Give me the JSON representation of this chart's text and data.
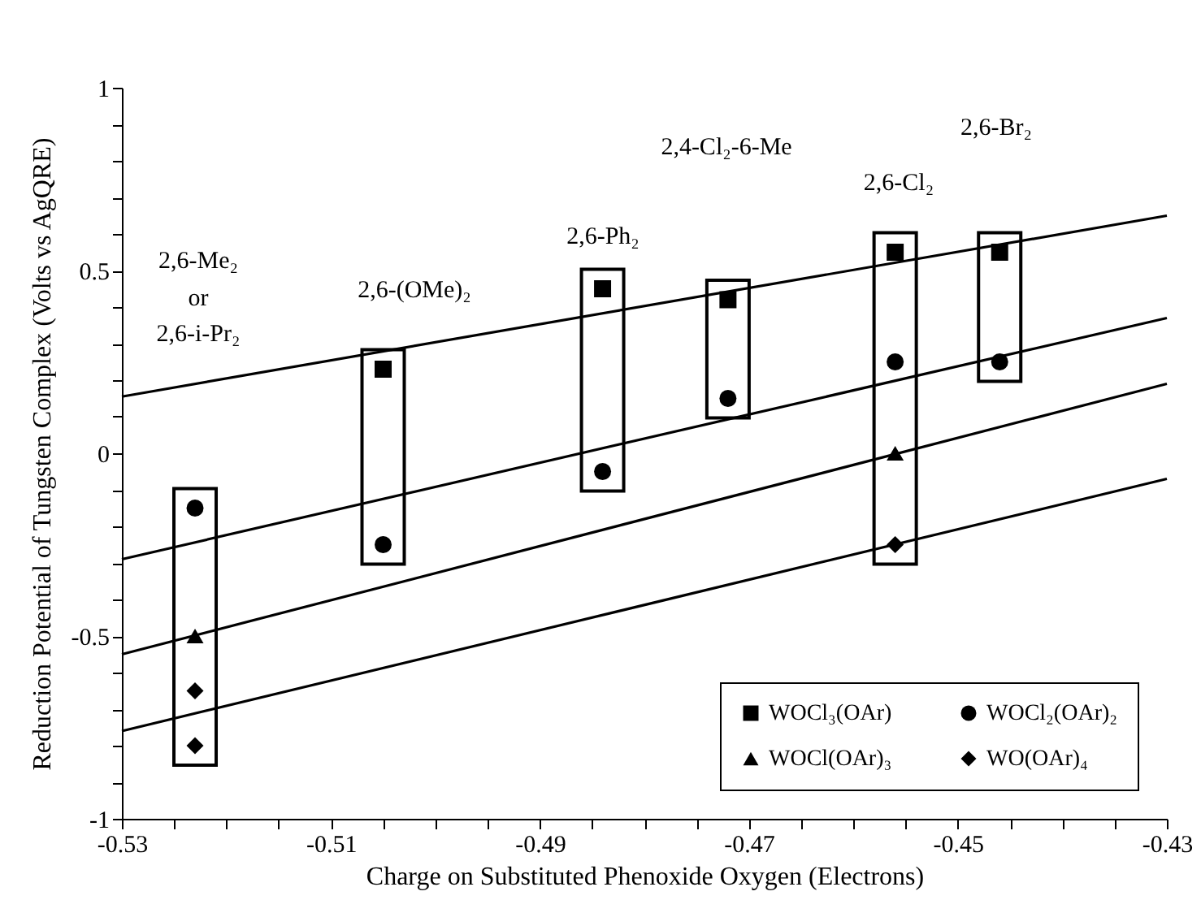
{
  "chart_data": {
    "type": "scatter",
    "xlabel": "Charge on Substituted Phenoxide Oxygen (Electrons)",
    "ylabel": "Reduction Potential of Tungsten Complex (Volts vs AgQRE)",
    "xlim": [
      -0.53,
      -0.43
    ],
    "ylim": [
      -1,
      1
    ],
    "xticks": [
      -0.53,
      {
        "value": -0.525,
        "label": null
      },
      {
        "value": -0.52,
        "label": null
      },
      {
        "value": -0.515,
        "label": null
      },
      -0.51,
      {
        "value": -0.505,
        "label": null
      },
      {
        "value": -0.5,
        "label": null
      },
      {
        "value": -0.495,
        "label": null
      },
      -0.49,
      {
        "value": -0.485,
        "label": null
      },
      {
        "value": -0.48,
        "label": null
      },
      {
        "value": -0.475,
        "label": null
      },
      -0.47,
      {
        "value": -0.465,
        "label": null
      },
      {
        "value": -0.46,
        "label": null
      },
      {
        "value": -0.455,
        "label": null
      },
      -0.45,
      {
        "value": -0.445,
        "label": null
      },
      {
        "value": -0.44,
        "label": null
      },
      {
        "value": -0.435,
        "label": null
      },
      -0.43
    ],
    "yticks": [
      -1,
      {
        "value": -0.9,
        "label": null
      },
      {
        "value": -0.8,
        "label": null
      },
      {
        "value": -0.7,
        "label": null
      },
      {
        "value": -0.6,
        "label": null
      },
      -0.5,
      {
        "value": -0.4,
        "label": null
      },
      {
        "value": -0.3,
        "label": null
      },
      {
        "value": -0.2,
        "label": null
      },
      {
        "value": -0.1,
        "label": null
      },
      0,
      {
        "value": 0.1,
        "label": null
      },
      {
        "value": 0.2,
        "label": null
      },
      {
        "value": 0.3,
        "label": null
      },
      {
        "value": 0.4,
        "label": null
      },
      0.5,
      {
        "value": 0.6,
        "label": null
      },
      {
        "value": 0.7,
        "label": null
      },
      {
        "value": 0.8,
        "label": null
      },
      {
        "value": 0.9,
        "label": null
      },
      1
    ],
    "grid": false,
    "legend": "bottom right",
    "series": [
      {
        "name": "WOCl₃(OAr)",
        "color": "#000000",
        "marker": "square",
        "x": [
          -0.505,
          -0.484,
          -0.472,
          -0.456,
          -0.446
        ],
        "values": [
          0.23,
          0.45,
          0.42,
          0.55,
          0.55
        ]
      },
      {
        "name": "WOCl(OAr)₃",
        "color": "#000000",
        "marker": "triangle",
        "x": [
          -0.523,
          -0.456
        ],
        "values": [
          -0.5,
          0.0
        ]
      },
      {
        "name": "WOCl₂(OAr)₂",
        "color": "#000000",
        "marker": "circle",
        "x": [
          -0.523,
          -0.505,
          -0.484,
          -0.472,
          -0.456,
          -0.446
        ],
        "values": [
          -0.15,
          -0.25,
          -0.05,
          0.15,
          0.25,
          0.25
        ]
      },
      {
        "name": "WO(OAr)₄",
        "color": "#000000",
        "marker": "diamond",
        "x": [
          -0.523,
          -0.523,
          -0.456
        ],
        "values": [
          -0.65,
          -0.8,
          -0.25
        ]
      },
      {
        "type": "line",
        "color": "#000000",
        "x": [
          -0.53,
          -0.43
        ],
        "values": [
          0.155,
          0.65
        ]
      },
      {
        "type": "line",
        "color": "#000000",
        "x": [
          -0.53,
          -0.43
        ],
        "values": [
          -0.29,
          0.37
        ]
      },
      {
        "type": "line",
        "color": "#000000",
        "x": [
          -0.53,
          -0.43
        ],
        "values": [
          -0.55,
          0.19
        ]
      },
      {
        "type": "line",
        "color": "#000000",
        "x": [
          -0.53,
          -0.43
        ],
        "values": [
          -0.76,
          -0.07
        ]
      }
    ],
    "annotations": [
      "2,6-Me₂",
      "or",
      "2,6-i-Pr₂",
      "2,6-(OMe)₂",
      "2,6-Ph₂",
      "2,4-Cl₂-6-Me",
      "2,6-Cl₂",
      "2,6-Br₂"
    ]
  }
}
